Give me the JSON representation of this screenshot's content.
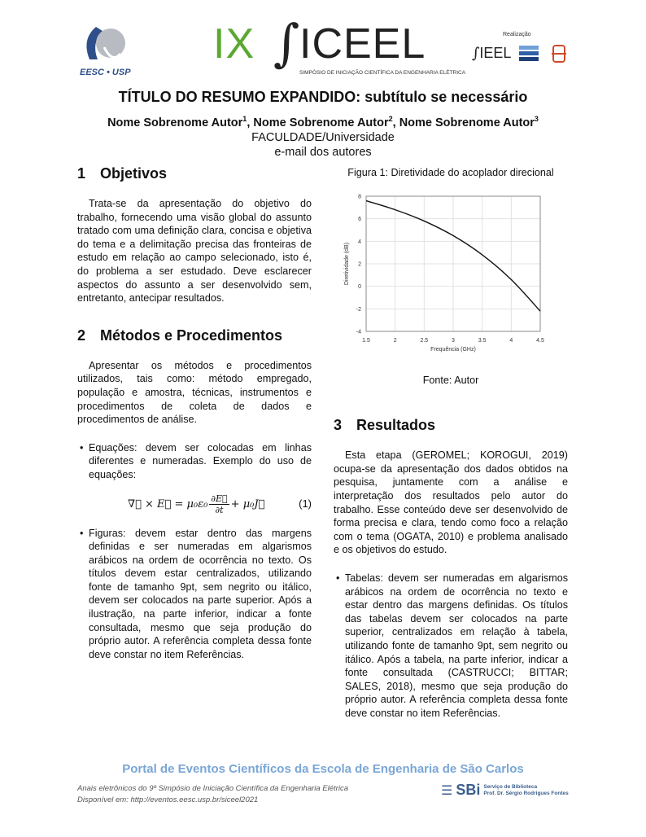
{
  "header": {
    "eesc_logo": "EESC • USP",
    "event_number": "IX",
    "event_name": "ICEEL",
    "event_subtitle": "SIMPÓSIO DE INICIAÇÃO CIENTÍFICA DA ENGENHARIA ELÉTRICA",
    "realizacao": "Realização",
    "sieel": "IEEL"
  },
  "title": "TÍTULO DO RESUMO EXPANDIDO: subtítulo se necessário",
  "authors": [
    {
      "name": "Nome Sobrenome Autor",
      "sup": "1"
    },
    {
      "name": "Nome Sobrenome Autor",
      "sup": "2"
    },
    {
      "name": "Nome Sobrenome Autor",
      "sup": "3"
    }
  ],
  "affiliation": "FACULDADE/Universidade",
  "email": "e-mail dos autores",
  "sections": {
    "s1": {
      "num": "1",
      "title": "Objetivos",
      "text": "Trata-se da apresentação do objetivo do trabalho, fornecendo uma visão global do assunto tratado com uma definição clara, concisa e objetiva do tema e a delimitação precisa das fronteiras de estudo em relação ao campo selecionado, isto é, do problema a ser estudado. Deve esclarecer aspectos do assunto a ser desenvolvido sem, entretanto, antecipar resultados."
    },
    "s2": {
      "num": "2",
      "title": "Métodos e Procedimentos",
      "text": "Apresentar os métodos e procedimentos utilizados, tais como: método empregado, população e amostra, técnicas, instrumentos e procedimentos de coleta de dados e procedimentos de análise.",
      "bullet1": "Equações: devem ser colocadas em linhas diferentes e numeradas. Exemplo do uso de equações:",
      "bullet2": "Figuras: devem estar dentro das margens definidas e ser numeradas em algarismos arábicos na ordem de ocorrência no texto. Os títulos devem estar centralizados, utilizando fonte de tamanho 9pt, sem negrito ou itálico, devem ser colocados na parte superior. Após a ilustração, na parte inferior, indicar a fonte consultada, mesmo que seja produção do próprio autor. A referência completa dessa fonte deve constar no item Referências."
    },
    "s3": {
      "num": "3",
      "title": "Resultados",
      "text": "Esta etapa (GEROMEL; KOROGUI, 2019) ocupa-se da apresentação dos dados obtidos na pesquisa, juntamente com a análise e interpretação dos resultados pelo autor do trabalho. Esse conteúdo deve ser desenvolvido de forma precisa e clara, tendo como foco a relação com o tema (OGATA, 2010) e problema analisado e os objetivos do estudo.",
      "bullet1": "Tabelas: devem ser numeradas em algarismos arábicos na ordem de ocorrência no texto e estar dentro das margens definidas. Os títulos das tabelas devem ser colocados na parte superior, centralizados em relação à tabela, utilizando fonte de tamanho 9pt, sem negrito ou itálico. Após a tabela, na parte inferior, indicar a fonte consultada (CASTRUCCI; BITTAR; SALES, 2018), mesmo que seja produção do próprio autor. A referência completa dessa fonte deve constar no item Referências."
    }
  },
  "equation": {
    "lhs": "∇⃗ × E⃗ = μ₀ε₀",
    "num": "∂E⃗",
    "den": "∂t",
    "rhs": "+ μ₀J⃗",
    "label": "(1)"
  },
  "figure": {
    "caption": "Figura 1: Diretividade do acoplador direcional",
    "source": "Fonte: Autor"
  },
  "chart_data": {
    "type": "line",
    "xlabel": "Frequência (GHz)",
    "ylabel": "Diretividade (dB)",
    "xlim": [
      1.5,
      4.5
    ],
    "ylim": [
      -4,
      8
    ],
    "xticks": [
      "1.5",
      "2",
      "2.5",
      "3",
      "3.5",
      "4",
      "4.5"
    ],
    "yticks": [
      "-4",
      "-2",
      "0",
      "2",
      "4",
      "6",
      "8"
    ],
    "grid": true,
    "series": [
      {
        "x": [
          1.5,
          2,
          2.5,
          3,
          3.5,
          4,
          4.5
        ],
        "y": [
          7.6,
          6.8,
          5.8,
          4.5,
          2.8,
          0.6,
          -2.2
        ],
        "color": "#111111"
      }
    ]
  },
  "footer": {
    "portal": "Portal de Eventos Científicos da Escola de Engenharia de São Carlos",
    "anais": "Anais eletrônicos do 9º Simpósio de Iniciação Científica da Engenharia Elétrica",
    "disponivel": "Disponível em: http://eventos.eesc.usp.br/siceel2021",
    "sbi": "SBi",
    "sbi_name1": "Serviço de Biblioteca",
    "sbi_name2": "Prof. Dr. Sérgio Rodrigues Fontes"
  }
}
